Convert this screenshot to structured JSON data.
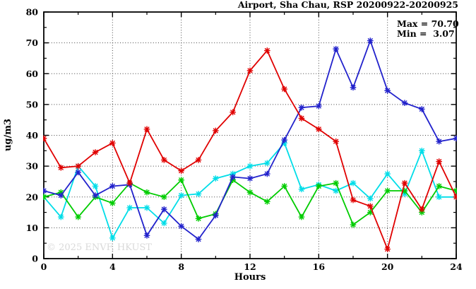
{
  "title": "Airport, Sha Chau, RSP 20200922-20200925",
  "annotation": {
    "max_label": "Max = 70.70",
    "min_label": "Min =  3.07"
  },
  "watermark": "© 2025 ENVF, HKUST",
  "chart_data": {
    "type": "line",
    "title": "Airport, Sha Chau, RSP 20200922-20200925",
    "xlabel": "Hours",
    "ylabel": "ug/m3",
    "xlim": [
      0,
      24
    ],
    "ylim": [
      0,
      80
    ],
    "x_ticks": [
      0,
      4,
      8,
      12,
      16,
      20,
      24
    ],
    "y_ticks": [
      0,
      10,
      20,
      30,
      40,
      50,
      60,
      70,
      80
    ],
    "grid": true,
    "legend": "none",
    "stat_max": 70.7,
    "stat_min": 3.07,
    "x": [
      0,
      1,
      2,
      3,
      4,
      5,
      6,
      7,
      8,
      9,
      10,
      11,
      12,
      13,
      14,
      15,
      16,
      17,
      18,
      19,
      20,
      21,
      22,
      23,
      24
    ],
    "series": [
      {
        "name": "cyan-series",
        "color": "#00dde8",
        "values": [
          20,
          13.5,
          30,
          23.5,
          6.7,
          16.5,
          16.5,
          11.5,
          20.5,
          21,
          26,
          27.5,
          30,
          31,
          37.5,
          22.5,
          24,
          22,
          24.5,
          19.5,
          27.5,
          21,
          35,
          20,
          20
        ]
      },
      {
        "name": "green-series",
        "color": "#00cc00",
        "values": [
          20,
          21.5,
          13.5,
          20,
          18,
          24.5,
          21.5,
          20,
          25.5,
          13,
          14.5,
          25.5,
          21.5,
          18.5,
          23.5,
          13.5,
          23.5,
          24.5,
          11,
          15,
          22,
          22,
          15,
          23.5,
          22
        ]
      },
      {
        "name": "blue-series",
        "color": "#2222cc",
        "values": [
          22,
          20.5,
          28,
          20.5,
          23.5,
          24,
          7.5,
          16,
          10.5,
          6.3,
          14,
          26.5,
          26,
          27.5,
          38.5,
          49,
          49.5,
          68,
          55.5,
          70.7,
          54.5,
          50.5,
          48.5,
          38,
          39
        ]
      },
      {
        "name": "red-series",
        "color": "#e00000",
        "values": [
          39,
          29.5,
          30,
          34.5,
          37.5,
          24.5,
          42,
          32,
          28.5,
          32,
          41.5,
          47.5,
          61,
          67.5,
          55,
          45.5,
          42,
          38,
          19,
          17,
          3.07,
          24.5,
          16,
          31.5,
          20
        ]
      }
    ]
  }
}
